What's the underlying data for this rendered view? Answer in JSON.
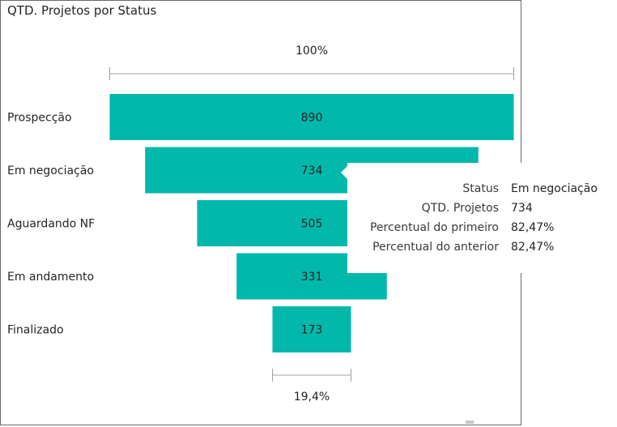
{
  "title": "QTD. Projetos por Status",
  "chart_data": {
    "type": "funnel",
    "categories": [
      "Prospecção",
      "Em negociação",
      "Aguardando NF",
      "Em andamento",
      "Finalizado"
    ],
    "values": [
      890,
      734,
      505,
      331,
      173
    ],
    "top_percent_label": "100%",
    "bottom_percent_label": "19,4%",
    "bar_color": "#01B8AA"
  },
  "tooltip": {
    "rows": [
      {
        "key": "Status",
        "value": "Em negociação"
      },
      {
        "key": "QTD. Projetos",
        "value": "734"
      },
      {
        "key": "Percentual do primeiro",
        "value": "82,47%"
      },
      {
        "key": "Percentual do anterior",
        "value": "82,47%"
      }
    ]
  }
}
